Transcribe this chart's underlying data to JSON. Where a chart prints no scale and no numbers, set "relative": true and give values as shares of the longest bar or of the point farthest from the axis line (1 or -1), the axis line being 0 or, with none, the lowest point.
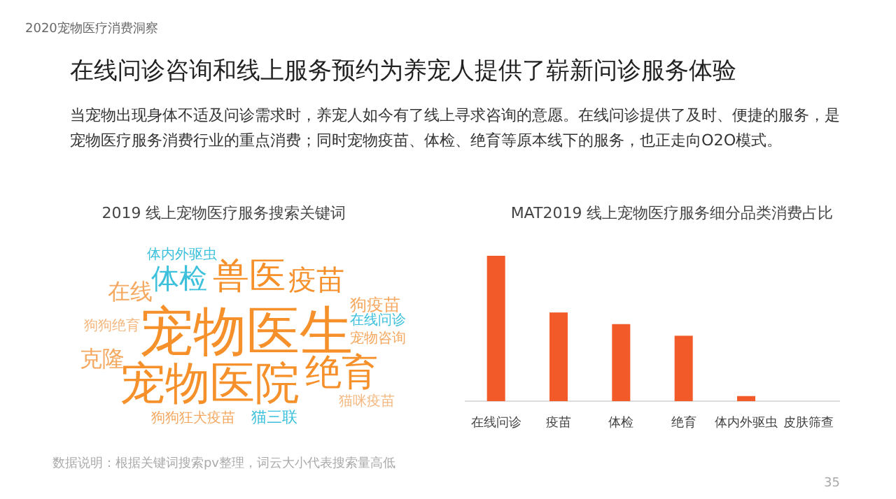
{
  "chart_data": [
    {
      "type": "other",
      "title": "在线问诊咨询和线上服务预约为养宠人提供了崭新问诊服务体验",
      "subtitle": "2020宠物医疗消费洞察",
      "annotations": [
        "当宠物出现身体不适及问诊需求时，养宠人如今有了线上寻求咨询的意愿。在线问诊提供了及时、便捷的服务，是",
        "宠物医疗服务消费行业的重点消费；同时宠物疫苗、体检、绝育等原本线下的服务，也正走向O2O模式。",
        "35"
      ]
    },
    {
      "type": "other",
      "title": "2019 线上宠物医疗服务搜索关键词",
      "annotations": [
        "宠物医生",
        "宠物医院",
        "兽医",
        "体检",
        "疫苗",
        "绝育",
        "在线",
        "克隆",
        "狗疫苗",
        "宠物咨询",
        "在线问诊",
        "猫三联",
        "狗狗狂犬疫苗",
        "猫咪疫苗",
        "狗狗绝育",
        "体内外驱虫",
        "数据说明：根据关键词搜索pv整理，词云大小代表搜索量高低"
      ]
    },
    {
      "type": "bar",
      "title": "MAT2019 线上宠物医疗服务细分品类消费占比",
      "relative": true,
      "categories": [
        "在线问诊",
        "疫苗",
        "体检",
        "绝育",
        "体内外驱虫",
        "皮肤筛查"
      ],
      "values": [
        1,
        0.61,
        0.53,
        0.45,
        0.035,
        0
      ],
      "color": "#f25a29"
    }
  ]
}
